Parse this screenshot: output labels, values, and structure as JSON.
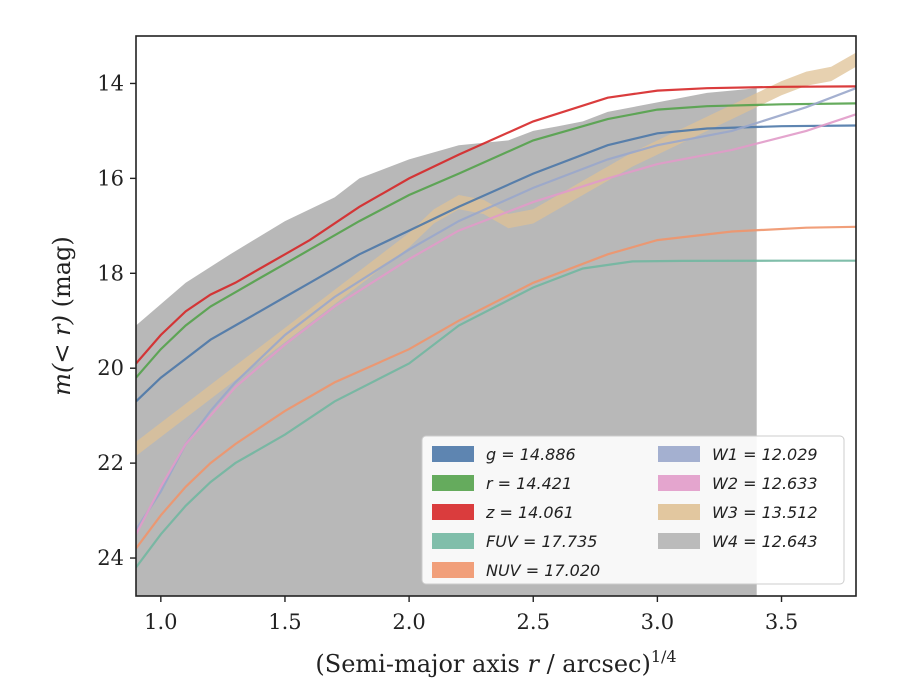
{
  "chart_data": {
    "type": "line",
    "xlabel_main": "(Semi-major axis ",
    "xlabel_var": "r",
    "xlabel_tail": " / arcsec)",
    "xlabel_exp": "1/4",
    "ylabel_main": "m(< r)",
    "ylabel_unit": " (mag)",
    "xlim": [
      0.9,
      3.8
    ],
    "ylim": [
      24.8,
      13.0
    ],
    "y_inverted": true,
    "xticks": [
      1.0,
      1.5,
      2.0,
      2.5,
      3.0,
      3.5
    ],
    "xtick_labels": [
      "1.0",
      "1.5",
      "2.0",
      "2.5",
      "3.0",
      "3.5"
    ],
    "yticks": [
      14,
      16,
      18,
      20,
      22,
      24
    ],
    "ytick_labels": [
      "14",
      "16",
      "18",
      "20",
      "22",
      "24"
    ],
    "grid": false,
    "legend_placement": "lower-right",
    "legend": [
      {
        "key": "g",
        "label": "g = 14.886",
        "color": "#4c78a8"
      },
      {
        "key": "r",
        "label": "r = 14.421",
        "color": "#54a24b"
      },
      {
        "key": "z",
        "label": "z = 14.061",
        "color": "#d62728"
      },
      {
        "key": "FUV",
        "label": "FUV = 17.735",
        "color": "#72b7a1"
      },
      {
        "key": "NUV",
        "label": "NUV = 17.020",
        "color": "#f0956c"
      },
      {
        "key": "W1",
        "label": "W1 = 12.029",
        "color": "#9aa7cb"
      },
      {
        "key": "W2",
        "label": "W2 = 12.633",
        "color": "#e19bc9"
      },
      {
        "key": "W3",
        "label": "W3 = 13.512",
        "color": "#dfc195"
      },
      {
        "key": "W4",
        "label": "W4 = 12.643",
        "color": "#b4b4b4"
      }
    ],
    "series": [
      {
        "key": "g",
        "kind": "line",
        "color": "#4c78a8",
        "x": [
          0.9,
          1.0,
          1.1,
          1.2,
          1.3,
          1.4,
          1.5,
          1.6,
          1.8,
          2.0,
          2.2,
          2.5,
          2.8,
          3.0,
          3.2,
          3.5,
          3.8
        ],
        "y": [
          20.7,
          20.2,
          19.8,
          19.4,
          19.1,
          18.8,
          18.5,
          18.2,
          17.6,
          17.1,
          16.6,
          15.9,
          15.3,
          15.05,
          14.95,
          14.9,
          14.886
        ]
      },
      {
        "key": "r",
        "kind": "line",
        "color": "#54a24b",
        "x": [
          0.9,
          1.0,
          1.1,
          1.2,
          1.3,
          1.4,
          1.5,
          1.6,
          1.8,
          2.0,
          2.2,
          2.5,
          2.8,
          3.0,
          3.2,
          3.5,
          3.8
        ],
        "y": [
          20.2,
          19.6,
          19.1,
          18.7,
          18.4,
          18.1,
          17.8,
          17.5,
          16.9,
          16.35,
          15.9,
          15.2,
          14.75,
          14.55,
          14.48,
          14.44,
          14.421
        ]
      },
      {
        "key": "z",
        "kind": "line",
        "color": "#d62728",
        "x": [
          0.9,
          1.0,
          1.1,
          1.2,
          1.3,
          1.4,
          1.5,
          1.6,
          1.8,
          2.0,
          2.2,
          2.5,
          2.8,
          3.0,
          3.2,
          3.5,
          3.8
        ],
        "y": [
          19.9,
          19.3,
          18.8,
          18.45,
          18.2,
          17.9,
          17.6,
          17.3,
          16.6,
          16.0,
          15.5,
          14.8,
          14.3,
          14.15,
          14.1,
          14.07,
          14.061
        ]
      },
      {
        "key": "FUV",
        "kind": "line",
        "color": "#72b7a1",
        "x": [
          0.9,
          1.0,
          1.1,
          1.2,
          1.3,
          1.5,
          1.7,
          2.0,
          2.2,
          2.5,
          2.7,
          2.9,
          3.1,
          3.5,
          3.8
        ],
        "y": [
          24.2,
          23.5,
          22.9,
          22.4,
          22.0,
          21.4,
          20.7,
          19.9,
          19.1,
          18.3,
          17.9,
          17.75,
          17.74,
          17.735,
          17.735
        ]
      },
      {
        "key": "NUV",
        "kind": "line",
        "color": "#f0956c",
        "x": [
          0.9,
          1.0,
          1.1,
          1.2,
          1.3,
          1.5,
          1.7,
          2.0,
          2.2,
          2.5,
          2.8,
          3.0,
          3.3,
          3.6,
          3.8
        ],
        "y": [
          23.8,
          23.1,
          22.5,
          22.0,
          21.6,
          20.9,
          20.3,
          19.6,
          19.0,
          18.2,
          17.6,
          17.3,
          17.12,
          17.04,
          17.02
        ]
      },
      {
        "key": "W1",
        "kind": "line",
        "color": "#9aa7cb",
        "x": [
          0.9,
          1.0,
          1.1,
          1.2,
          1.3,
          1.5,
          1.7,
          2.0,
          2.2,
          2.5,
          2.8,
          3.0,
          3.3,
          3.6,
          3.8
        ],
        "y": [
          23.4,
          22.6,
          21.6,
          20.9,
          20.3,
          19.3,
          18.5,
          17.5,
          16.9,
          16.2,
          15.6,
          15.3,
          15.0,
          14.5,
          14.1
        ]
      },
      {
        "key": "W2",
        "kind": "line",
        "color": "#e19bc9",
        "x": [
          0.9,
          1.0,
          1.1,
          1.2,
          1.3,
          1.5,
          1.7,
          2.0,
          2.2,
          2.5,
          2.8,
          3.0,
          3.3,
          3.6,
          3.8
        ],
        "y": [
          23.5,
          22.5,
          21.6,
          21.0,
          20.4,
          19.5,
          18.7,
          17.7,
          17.1,
          16.5,
          16.0,
          15.7,
          15.4,
          15.0,
          14.65
        ]
      },
      {
        "key": "W3",
        "kind": "band",
        "color": "#dfc195",
        "x": [
          0.9,
          1.1,
          1.3,
          1.5,
          1.7,
          1.9,
          2.0,
          2.1,
          2.2,
          2.3,
          2.4,
          2.5,
          2.7,
          2.9,
          3.1,
          3.3,
          3.5,
          3.6,
          3.7,
          3.8
        ],
        "y": [
          21.7,
          20.9,
          20.1,
          19.3,
          18.5,
          17.7,
          17.3,
          16.8,
          16.5,
          16.6,
          16.9,
          16.8,
          16.2,
          15.6,
          15.1,
          14.6,
          14.1,
          13.9,
          13.8,
          13.5
        ]
      },
      {
        "key": "W4",
        "kind": "area",
        "color": "#b4b4b4",
        "x": [
          0.9,
          1.1,
          1.28,
          1.5,
          1.7,
          1.8,
          2.0,
          2.2,
          2.4,
          2.5,
          2.6,
          2.7,
          2.8,
          3.0,
          3.2,
          3.4
        ],
        "y": [
          19.1,
          18.2,
          17.6,
          16.9,
          16.4,
          16.0,
          15.6,
          15.3,
          15.2,
          15.0,
          14.9,
          14.8,
          14.6,
          14.4,
          14.2,
          14.1
        ]
      }
    ]
  }
}
